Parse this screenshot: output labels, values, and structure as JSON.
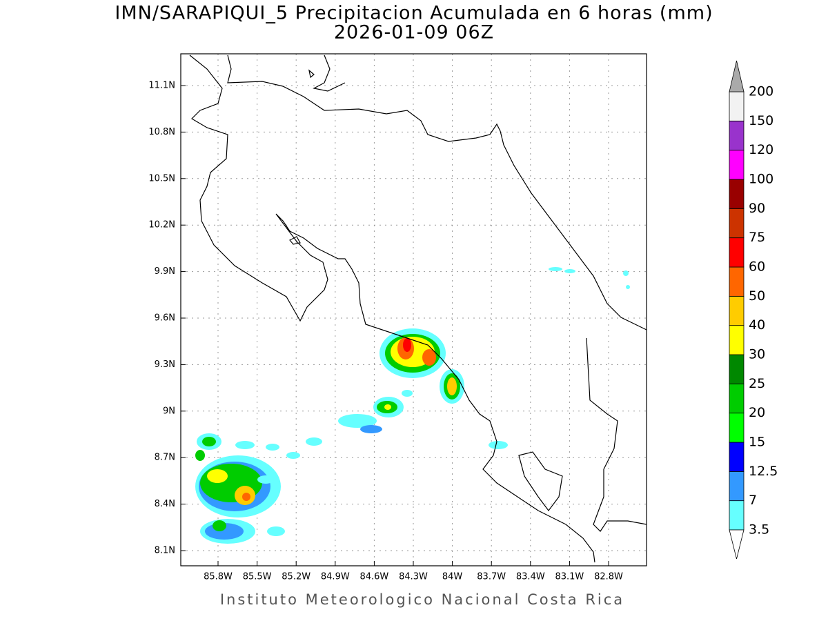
{
  "title": "IMN/SARAPIQUI_5 Precipitacion Acumulada en 6 horas (mm)",
  "subtitle": "2026-01-09 06Z",
  "x_ticks": [
    "85.8W",
    "85.5W",
    "85.2W",
    "84.9W",
    "84.6W",
    "84.3W",
    "84W",
    "83.7W",
    "83.4W",
    "83.1W",
    "82.8W"
  ],
  "y_ticks": [
    "11.1N",
    "10.8N",
    "10.5N",
    "10.2N",
    "9.9N",
    "9.6N",
    "9.3N",
    "9N",
    "8.7N",
    "8.4N",
    "8.1N"
  ],
  "colorbar": {
    "labels": [
      "3.5",
      "7",
      "12.5",
      "15",
      "20",
      "25",
      "30",
      "40",
      "50",
      "60",
      "75",
      "90",
      "100",
      "120",
      "150",
      "200"
    ],
    "colors": [
      "#66ffff",
      "#3399ff",
      "#0000ff",
      "#00ff00",
      "#00cc00",
      "#008800",
      "#ffff00",
      "#ffcc00",
      "#ff6600",
      "#ff0000",
      "#cc3300",
      "#990000",
      "#ff00ff",
      "#9933cc",
      "#f2f2f2"
    ],
    "under_color": "#ffffff",
    "over_color": "#aaaaaa"
  },
  "footer": "Instituto Meteorologico Nacional Costa Rica"
}
